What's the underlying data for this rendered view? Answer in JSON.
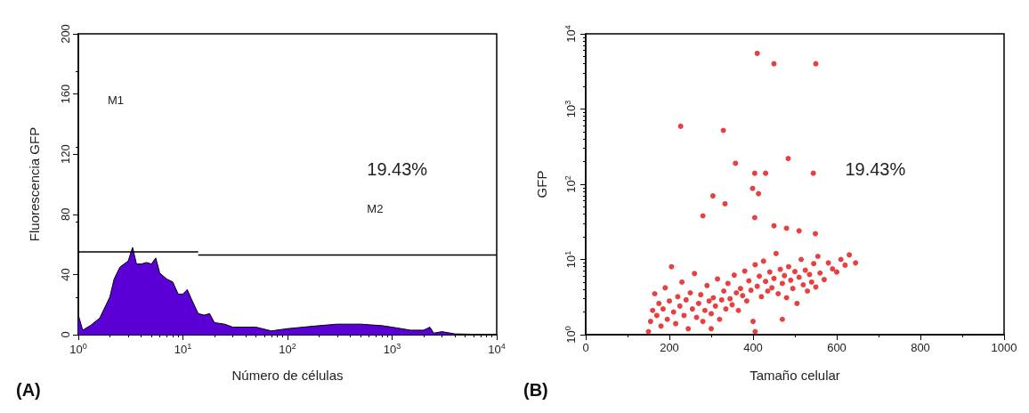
{
  "chart_data": [
    {
      "type": "area",
      "xlabel": "Número de células",
      "ylabel": "Fluorescencia GFP",
      "log": "x",
      "xlim": [
        1,
        10000
      ],
      "ylim": [
        0,
        200
      ],
      "xticks": [
        {
          "value": 1,
          "label": "10$^{0}$"
        },
        {
          "value": 10,
          "label": "10$^{1}$"
        },
        {
          "value": 100,
          "label": "10$^{2}$"
        },
        {
          "value": 1000,
          "label": "10$^{3}$"
        },
        {
          "value": 10000,
          "label": "10$^{4}$"
        }
      ],
      "yticks": [
        0,
        40,
        80,
        120,
        160,
        200
      ],
      "series": [
        {
          "color": "#5a00d6",
          "x": [
            1,
            1.1,
            1.3,
            1.6,
            2,
            2.2,
            2.5,
            3,
            3.3,
            3.6,
            4,
            4.5,
            5,
            5.5,
            6,
            7,
            8,
            9,
            10,
            11,
            12,
            14,
            16,
            18,
            20,
            25,
            30,
            50,
            70,
            100,
            200,
            300,
            500,
            800,
            1000,
            1500,
            2000,
            2300,
            2500,
            3000,
            4000,
            10000
          ],
          "values": [
            13,
            3,
            6,
            11,
            25,
            37,
            45,
            49,
            58,
            47,
            47,
            48,
            47,
            51,
            41,
            37,
            35,
            27,
            27,
            30,
            24,
            14,
            13,
            14,
            8,
            7,
            5,
            5,
            2.5,
            4,
            6,
            7,
            7,
            6,
            5,
            3,
            3,
            5,
            1,
            2,
            0.5,
            0
          ]
        },
        {
          "type": "line",
          "color": "#000000",
          "x": [
            1,
            14
          ],
          "values": [
            55,
            55
          ]
        },
        {
          "type": "line",
          "color": "#000000",
          "x": [
            14,
            10000
          ],
          "values": [
            53,
            53
          ]
        }
      ],
      "annotations": [
        "M1",
        "M2",
        "19.43%",
        "(A)"
      ]
    },
    {
      "type": "scatter",
      "xlabel": "Tamaño celular",
      "ylabel": "GFP",
      "log": "y",
      "xlim": [
        0,
        1000
      ],
      "ylim": [
        1,
        10000
      ],
      "marker": "circle",
      "xticks": [
        0,
        200,
        400,
        600,
        800,
        1000
      ],
      "yticks": [
        {
          "value": 1,
          "label": "10$^{0}$"
        },
        {
          "value": 10,
          "label": "10$^{1}$"
        },
        {
          "value": 100,
          "label": "10$^{2}$"
        },
        {
          "value": 1000,
          "label": "10$^{3}$"
        },
        {
          "value": 10000,
          "label": "10$^{4}$"
        }
      ],
      "series": [
        {
          "color": "#e01010",
          "x": [
            410,
            450,
            550,
            227,
            329,
            358,
            484,
            404,
            430,
            544,
            399,
            413,
            304,
            333,
            280,
            404,
            450,
            480,
            510,
            549,
            155,
            160,
            165,
            170,
            175,
            180,
            185,
            190,
            195,
            200,
            205,
            210,
            215,
            220,
            225,
            230,
            235,
            240,
            245,
            250,
            255,
            260,
            265,
            270,
            275,
            280,
            285,
            290,
            295,
            300,
            305,
            310,
            315,
            320,
            325,
            330,
            335,
            340,
            345,
            350,
            355,
            360,
            365,
            370,
            375,
            380,
            385,
            390,
            395,
            400,
            405,
            410,
            415,
            420,
            425,
            430,
            435,
            440,
            445,
            450,
            455,
            460,
            465,
            470,
            475,
            480,
            485,
            490,
            495,
            500,
            505,
            510,
            515,
            520,
            525,
            530,
            535,
            540,
            545,
            550,
            555,
            560,
            570,
            580,
            590,
            600,
            610,
            620,
            630,
            645,
            150,
            300,
            405,
            470
          ],
          "values": [
            5500,
            4000,
            4000,
            590,
            520,
            190,
            220,
            140,
            140,
            140,
            88,
            75,
            70,
            55,
            38,
            36,
            28,
            26,
            24,
            22,
            1.5,
            2.1,
            3.5,
            1.8,
            2.6,
            1.3,
            2.2,
            4.2,
            1.6,
            2.8,
            8,
            2,
            1.4,
            3.2,
            2.4,
            5,
            1.8,
            2.9,
            1.2,
            3.6,
            2.2,
            6.5,
            1.7,
            2.6,
            3.4,
            1.5,
            2.1,
            4.5,
            2.8,
            1.9,
            3.1,
            2.4,
            5.5,
            1.6,
            2.9,
            3.8,
            2.2,
            4.8,
            3,
            2.5,
            6.2,
            3.6,
            2.1,
            4.1,
            3.3,
            7,
            2.8,
            5.2,
            3.9,
            1.5,
            8.5,
            4.4,
            6,
            3.2,
            9.5,
            5.1,
            3.8,
            6.8,
            4.2,
            5.6,
            12,
            3.5,
            7.4,
            4.8,
            6.1,
            3.1,
            8,
            5.3,
            4.1,
            6.9,
            2.6,
            5.8,
            10,
            4.6,
            7.2,
            3.8,
            6.3,
            5,
            8.8,
            4.3,
            11,
            6.6,
            5.4,
            9,
            7.5,
            6.8,
            10,
            8.4,
            11.5,
            9,
            1.1,
            1.2,
            1.1,
            1.6
          ]
        }
      ],
      "annotations": [
        "19.43%",
        "(B)"
      ]
    }
  ]
}
